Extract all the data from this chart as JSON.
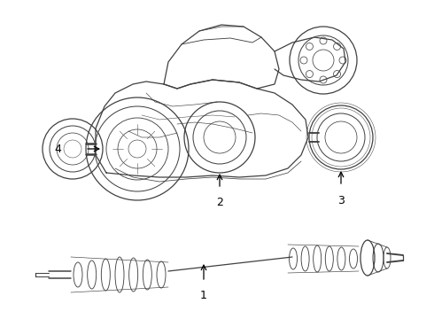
{
  "bg_color": "#ffffff",
  "line_color": "#404040",
  "label_color": "#000000",
  "fig_width": 4.9,
  "fig_height": 3.6,
  "dpi": 100
}
